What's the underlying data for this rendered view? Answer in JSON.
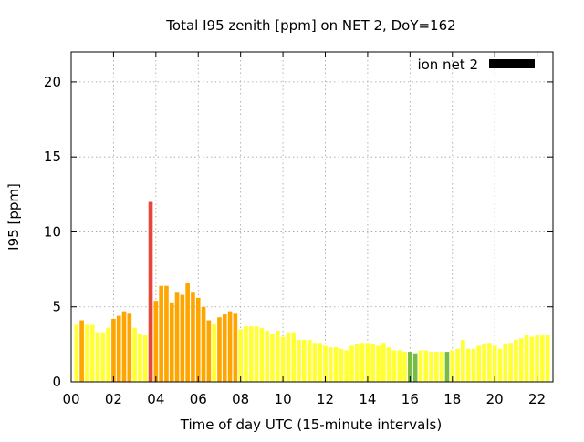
{
  "chart_data": {
    "type": "bar",
    "title": "Total I95 zenith [ppm] on NET 2, DoY=162",
    "xlabel": "Time of day UTC (15-minute intervals)",
    "ylabel": "I95 [ppm]",
    "xlim": [
      0,
      22.75
    ],
    "ylim": [
      0,
      22
    ],
    "x_ticks": [
      0,
      2,
      4,
      6,
      8,
      10,
      12,
      14,
      16,
      18,
      20,
      22
    ],
    "x_tick_labels": [
      "00",
      "02",
      "04",
      "06",
      "08",
      "10",
      "12",
      "14",
      "16",
      "18",
      "20",
      "22"
    ],
    "y_ticks": [
      0,
      5,
      10,
      15,
      20
    ],
    "y_tick_labels": [
      "0",
      "5",
      "10",
      "15",
      "20"
    ],
    "grid": true,
    "legend": {
      "label": "ion net 2",
      "color": "#000000",
      "position": "top-right"
    },
    "bar_width_hours": 0.2,
    "colors": {
      "yellow": "#ffff33",
      "orange": "#ffa500",
      "red": "#e8463a",
      "green": "#77bb44"
    },
    "series": [
      {
        "name": "ion net 2",
        "x": [
          0.25,
          0.5,
          0.75,
          1.0,
          1.25,
          1.5,
          1.75,
          2.0,
          2.25,
          2.5,
          2.75,
          3.0,
          3.25,
          3.5,
          3.75,
          4.0,
          4.25,
          4.5,
          4.75,
          5.0,
          5.25,
          5.5,
          5.75,
          6.0,
          6.25,
          6.5,
          6.75,
          7.0,
          7.25,
          7.5,
          7.75,
          8.0,
          8.25,
          8.5,
          8.75,
          9.0,
          9.25,
          9.5,
          9.75,
          10.0,
          10.25,
          10.5,
          10.75,
          11.0,
          11.25,
          11.5,
          11.75,
          12.0,
          12.25,
          12.5,
          12.75,
          13.0,
          13.25,
          13.5,
          13.75,
          14.0,
          14.25,
          14.5,
          14.75,
          15.0,
          15.25,
          15.5,
          15.75,
          16.0,
          16.25,
          16.5,
          16.75,
          17.0,
          17.25,
          17.5,
          17.75,
          18.0,
          18.25,
          18.5,
          18.75,
          19.0,
          19.25,
          19.5,
          19.75,
          20.0,
          20.25,
          20.5,
          20.75,
          21.0,
          21.25,
          21.5,
          21.75,
          22.0,
          22.25,
          22.5
        ],
        "values": [
          3.8,
          4.1,
          3.8,
          3.8,
          3.3,
          3.3,
          3.6,
          4.2,
          4.4,
          4.7,
          4.6,
          3.6,
          3.2,
          3.1,
          12.0,
          5.4,
          6.4,
          6.4,
          5.3,
          6.0,
          5.8,
          6.6,
          6.0,
          5.6,
          5.0,
          4.1,
          3.9,
          4.3,
          4.5,
          4.7,
          4.6,
          3.5,
          3.7,
          3.7,
          3.7,
          3.6,
          3.4,
          3.2,
          3.4,
          3.0,
          3.3,
          3.3,
          2.8,
          2.8,
          2.8,
          2.6,
          2.6,
          2.4,
          2.3,
          2.3,
          2.2,
          2.1,
          2.4,
          2.5,
          2.6,
          2.6,
          2.5,
          2.4,
          2.6,
          2.3,
          2.1,
          2.1,
          2.0,
          2.0,
          1.9,
          2.1,
          2.1,
          2.0,
          2.0,
          2.0,
          2.0,
          2.1,
          2.2,
          2.8,
          2.2,
          2.2,
          2.4,
          2.5,
          2.6,
          2.4,
          2.2,
          2.5,
          2.6,
          2.8,
          2.9,
          3.1,
          3.0,
          3.1,
          3.1,
          3.1
        ],
        "colors": [
          "yellow",
          "orange",
          "yellow",
          "yellow",
          "yellow",
          "yellow",
          "yellow",
          "orange",
          "orange",
          "orange",
          "orange",
          "yellow",
          "yellow",
          "yellow",
          "red",
          "orange",
          "orange",
          "orange",
          "orange",
          "orange",
          "orange",
          "orange",
          "orange",
          "orange",
          "orange",
          "orange",
          "yellow",
          "orange",
          "orange",
          "orange",
          "orange",
          "yellow",
          "yellow",
          "yellow",
          "yellow",
          "yellow",
          "yellow",
          "yellow",
          "yellow",
          "yellow",
          "yellow",
          "yellow",
          "yellow",
          "yellow",
          "yellow",
          "yellow",
          "yellow",
          "yellow",
          "yellow",
          "yellow",
          "yellow",
          "yellow",
          "yellow",
          "yellow",
          "yellow",
          "yellow",
          "yellow",
          "yellow",
          "yellow",
          "yellow",
          "yellow",
          "yellow",
          "yellow",
          "green",
          "green",
          "yellow",
          "yellow",
          "yellow",
          "yellow",
          "yellow",
          "green",
          "yellow",
          "yellow",
          "yellow",
          "yellow",
          "yellow",
          "yellow",
          "yellow",
          "yellow",
          "yellow",
          "yellow",
          "yellow",
          "yellow",
          "yellow",
          "yellow",
          "yellow",
          "yellow",
          "yellow",
          "yellow",
          "yellow"
        ]
      }
    ]
  }
}
